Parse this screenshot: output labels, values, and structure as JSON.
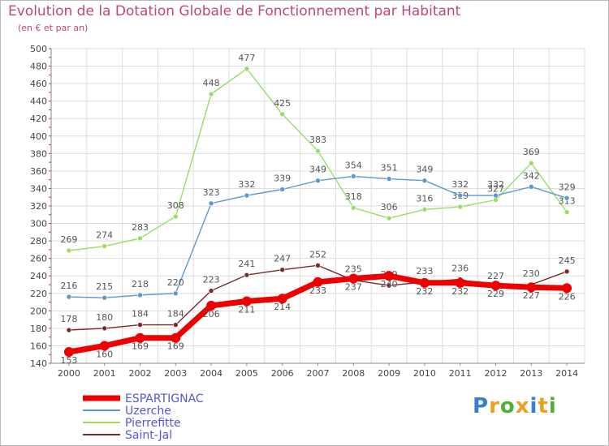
{
  "header": {
    "title": "Evolution de la Dotation Globale de Fonctionnement par Habitant",
    "subtitle": "(en € et par an)"
  },
  "logo": {
    "text": "Proxiti",
    "colors": [
      "#3a7fcf",
      "#e8a21f",
      "#4caf3a",
      "#e8a21f",
      "#3a7fcf",
      "#e8a21f",
      "#4caf3a"
    ]
  },
  "chart_data": {
    "type": "line",
    "categories": [
      "2000",
      "2001",
      "2002",
      "2003",
      "2004",
      "2005",
      "2006",
      "2007",
      "2008",
      "2009",
      "2010",
      "2011",
      "2012",
      "2013",
      "2014"
    ],
    "ylim": [
      140,
      500
    ],
    "yticks": [
      140,
      160,
      180,
      200,
      220,
      240,
      260,
      280,
      300,
      320,
      340,
      360,
      380,
      400,
      420,
      440,
      460,
      480,
      500
    ],
    "grid": true,
    "legend_placement": "bottom-left",
    "series": [
      {
        "name": "ESPARTIGNAC",
        "color": "#ee0000",
        "values": [
          153,
          160,
          169,
          169,
          206,
          211,
          214,
          233,
          237,
          240,
          232,
          232,
          229,
          227,
          226
        ]
      },
      {
        "name": "Uzerche",
        "color": "#5a98d0",
        "values": [
          216,
          215,
          218,
          220,
          323,
          332,
          339,
          349,
          354,
          351,
          349,
          332,
          332,
          342,
          329
        ]
      },
      {
        "name": "Pierrefitte",
        "color": "#99dd66",
        "values": [
          269,
          274,
          283,
          308,
          448,
          477,
          425,
          383,
          318,
          306,
          316,
          319,
          327,
          369,
          313
        ]
      },
      {
        "name": "Saint-Jal",
        "color": "#7a2a2a",
        "values": [
          178,
          180,
          184,
          184,
          223,
          241,
          247,
          252,
          235,
          229,
          233,
          236,
          227,
          230,
          245
        ]
      }
    ]
  }
}
